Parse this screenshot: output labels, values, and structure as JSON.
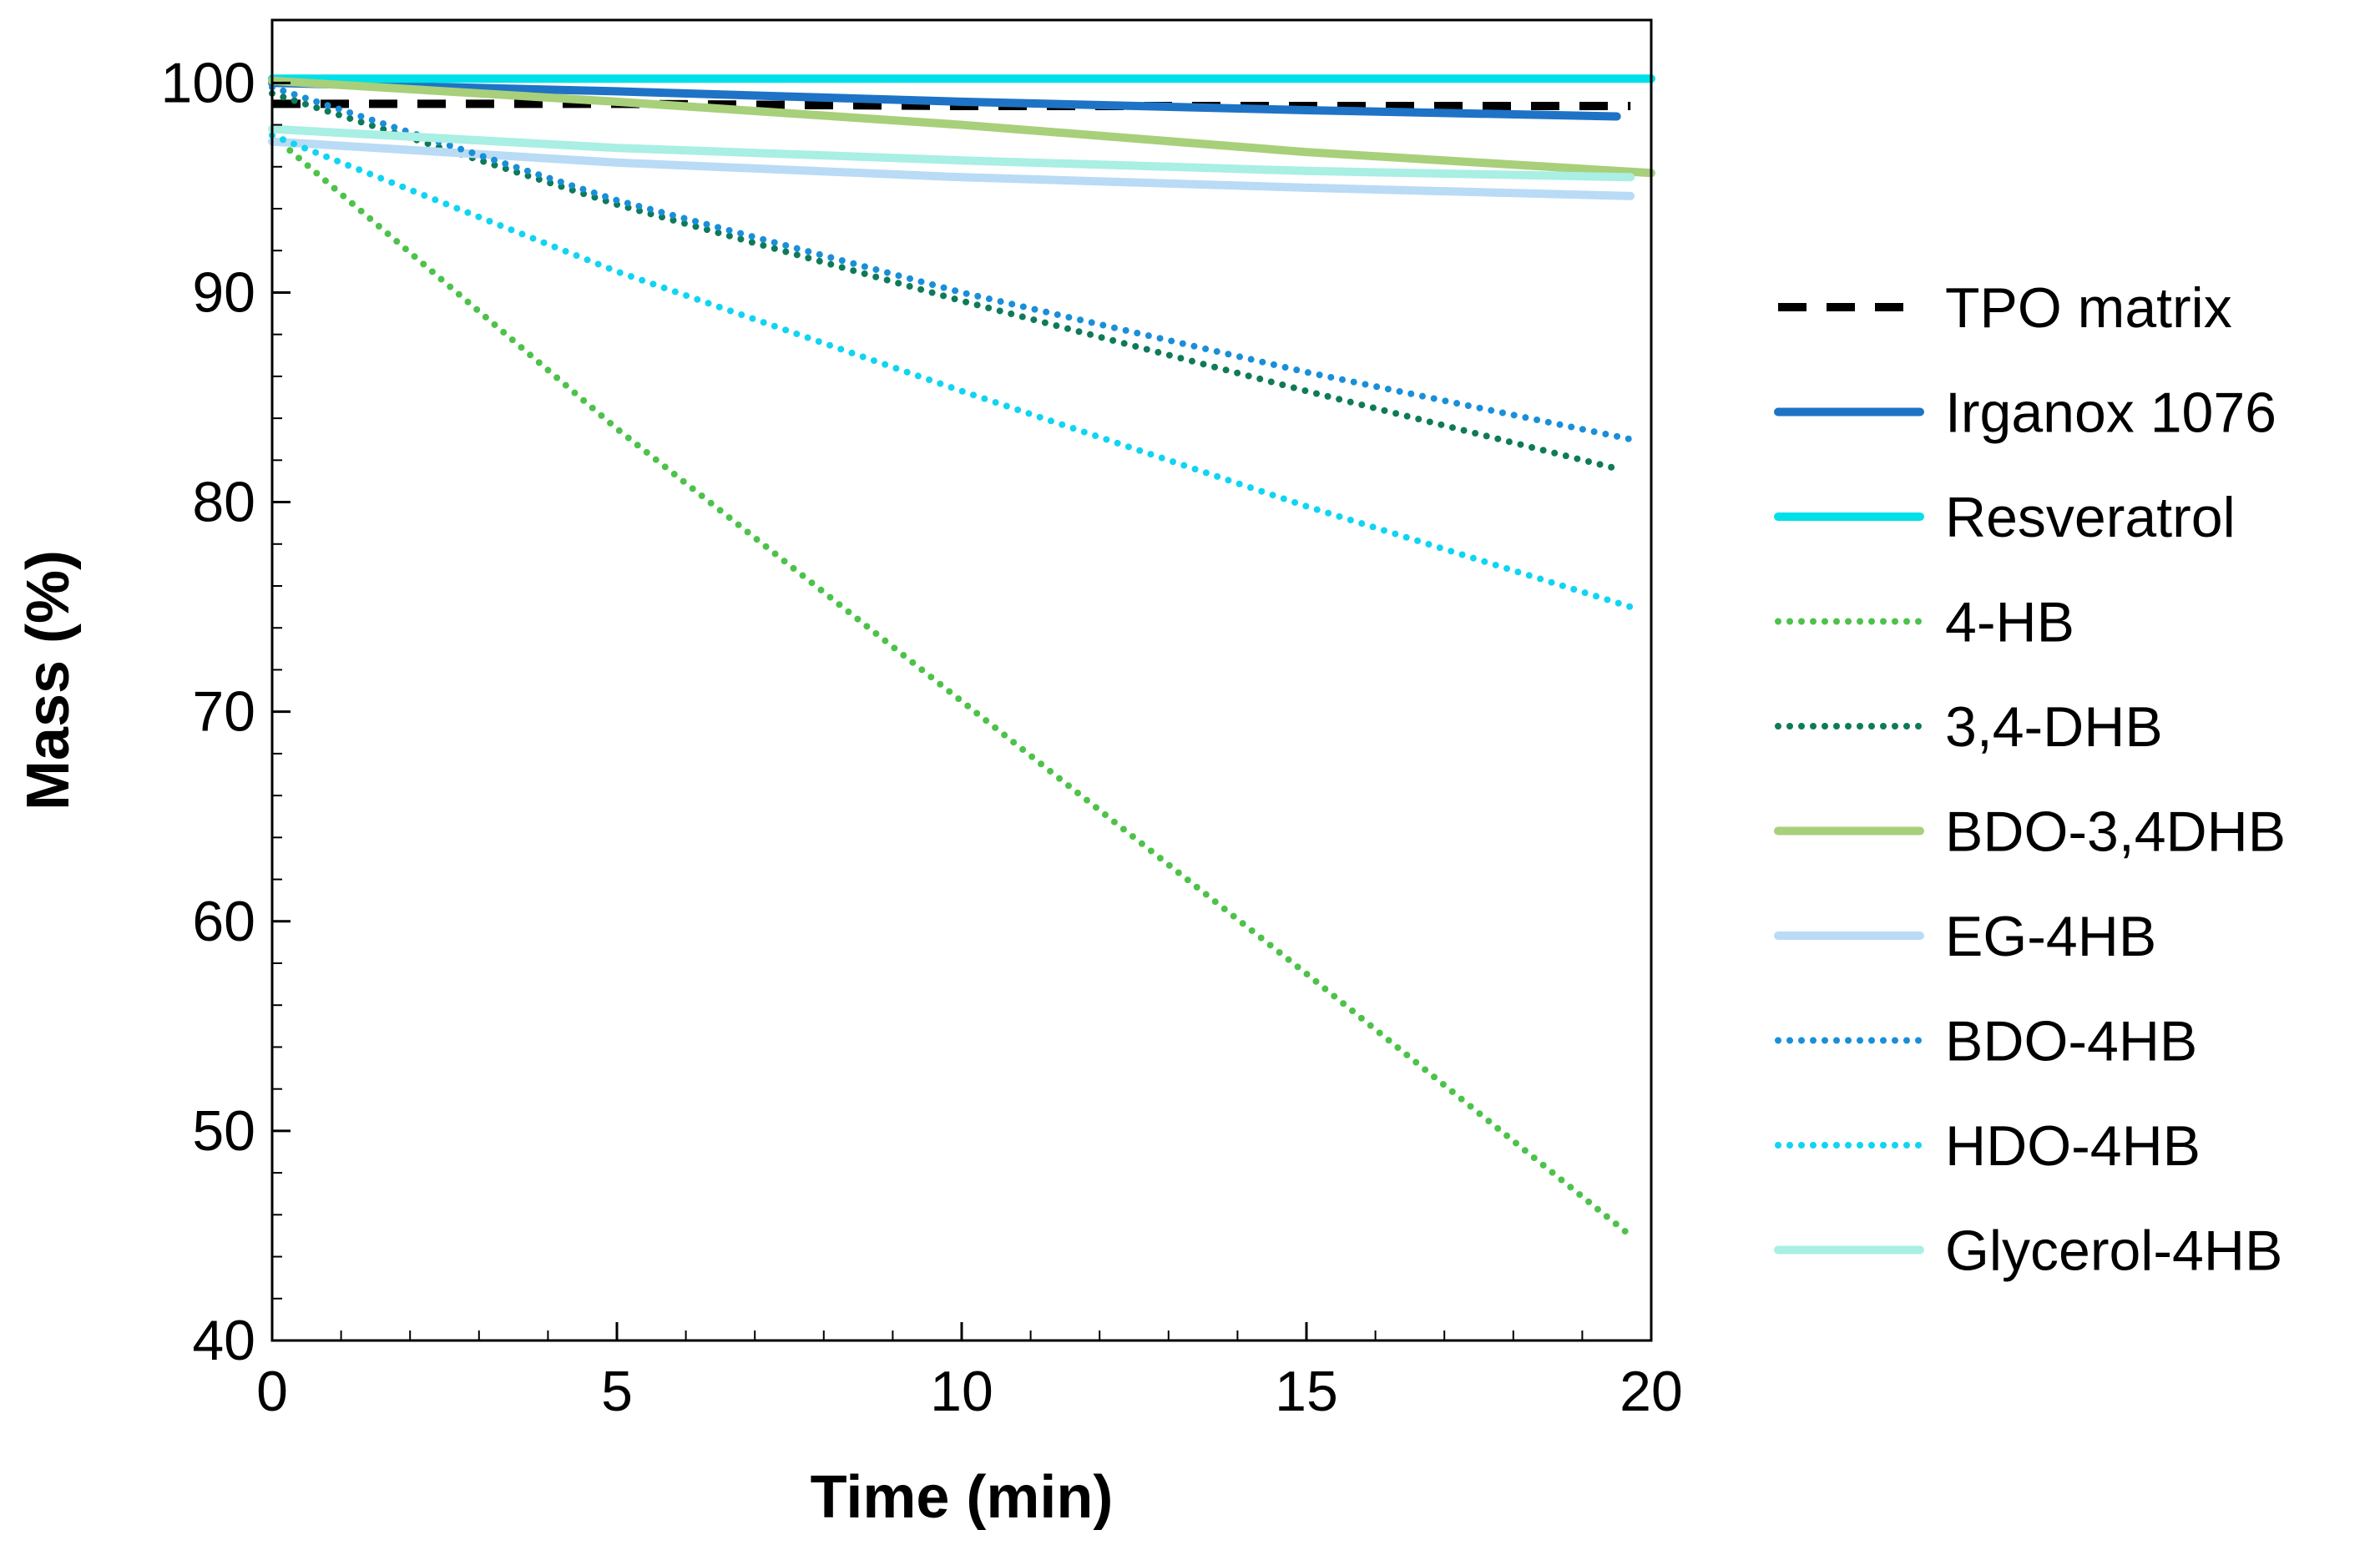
{
  "chart_data": {
    "type": "line",
    "title": "",
    "xlabel": "Time (min)",
    "ylabel": "Mass (%)",
    "xlim": [
      0,
      20
    ],
    "ylim": [
      40,
      103
    ],
    "xticks": [
      0,
      5,
      10,
      15,
      20
    ],
    "yticks": [
      40,
      50,
      60,
      70,
      80,
      90,
      100
    ],
    "grid": false,
    "legend_position": "right",
    "series": [
      {
        "name": "TPO matrix",
        "color": "#000000",
        "style": "dashed",
        "x": [
          0,
          5,
          10,
          15,
          19.7
        ],
        "y": [
          99.0,
          99.0,
          98.9,
          98.9,
          98.9
        ]
      },
      {
        "name": "Irganox 1076",
        "color": "#1f73c6",
        "style": "solid",
        "x": [
          0,
          5,
          10,
          15,
          19.5
        ],
        "y": [
          100.0,
          99.6,
          99.1,
          98.7,
          98.4
        ]
      },
      {
        "name": "Resveratrol",
        "color": "#00e0e8",
        "style": "solid",
        "x": [
          0,
          5,
          10,
          15,
          20
        ],
        "y": [
          100.2,
          100.2,
          100.2,
          100.2,
          100.2
        ]
      },
      {
        "name": "4-HB",
        "color": "#4dc24a",
        "style": "dotted",
        "x": [
          0,
          5,
          10,
          15,
          19.7
        ],
        "y": [
          97.5,
          83.5,
          70.5,
          57.5,
          45.0
        ]
      },
      {
        "name": "3,4-DHB",
        "color": "#0f7a5a",
        "style": "dotted",
        "x": [
          0,
          5,
          10,
          15,
          19.5
        ],
        "y": [
          99.5,
          94.2,
          89.6,
          85.3,
          81.6
        ]
      },
      {
        "name": "BDO-3,4DHB",
        "color": "#a8cf7a",
        "style": "solid",
        "x": [
          0,
          5,
          10,
          15,
          20
        ],
        "y": [
          100.1,
          99.1,
          98.0,
          96.7,
          95.7
        ]
      },
      {
        "name": "EG-4HB",
        "color": "#b9dbf5",
        "style": "solid",
        "x": [
          0,
          5,
          10,
          15,
          19.7
        ],
        "y": [
          97.2,
          96.2,
          95.5,
          95.0,
          94.6
        ]
      },
      {
        "name": "BDO-4HB",
        "color": "#1a8fd8",
        "style": "dotted",
        "x": [
          0,
          5,
          10,
          15,
          19.7
        ],
        "y": [
          99.8,
          94.4,
          90.0,
          86.2,
          83.0
        ]
      },
      {
        "name": "HDO-4HB",
        "color": "#11d4f2",
        "style": "dotted",
        "x": [
          0,
          5,
          10,
          15,
          19.7
        ],
        "y": [
          97.5,
          91.0,
          85.3,
          79.8,
          75.0
        ]
      },
      {
        "name": "Glycerol-4HB",
        "color": "#a9efe3",
        "style": "solid",
        "x": [
          0,
          5,
          10,
          15,
          19.7
        ],
        "y": [
          97.8,
          96.9,
          96.3,
          95.8,
          95.5
        ]
      }
    ]
  }
}
